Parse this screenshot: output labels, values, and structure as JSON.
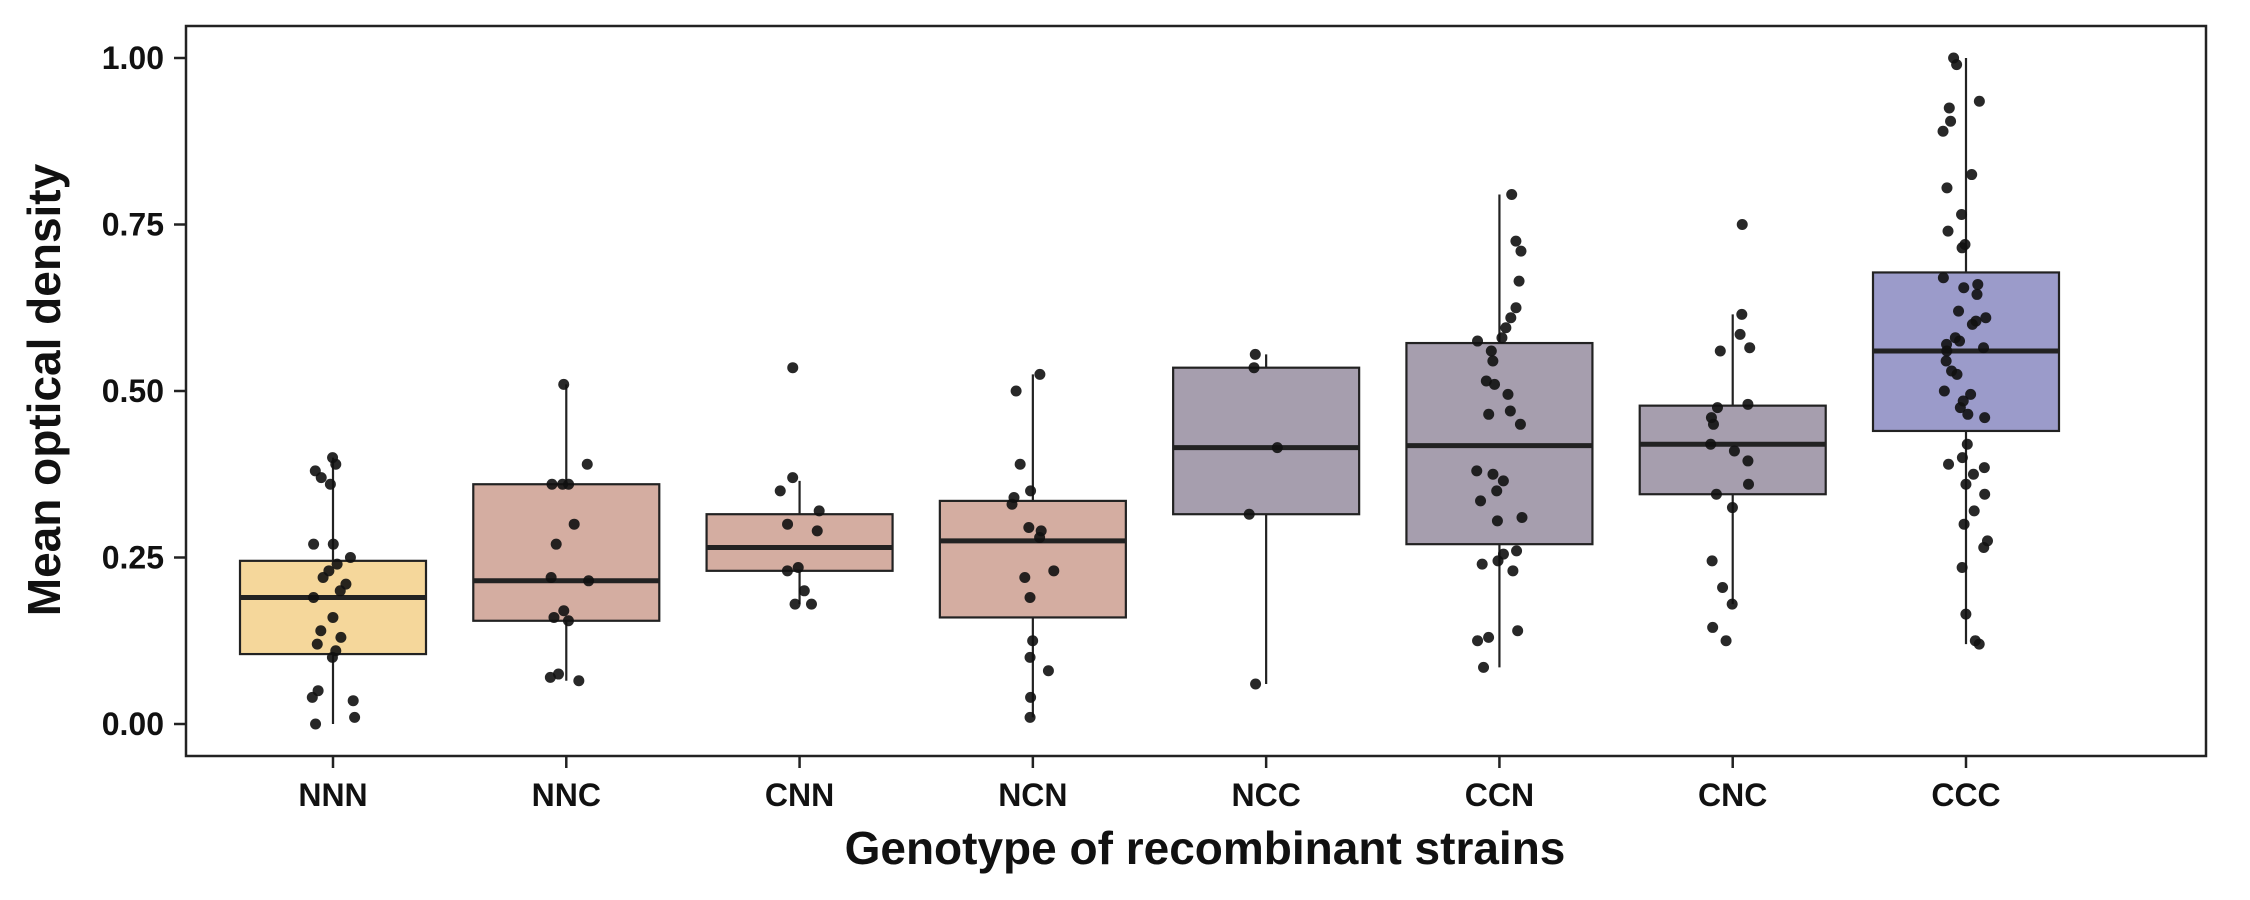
{
  "chart_data": {
    "type": "box",
    "title": "",
    "xlabel": "Genotype of recombinant strains",
    "ylabel": "Mean optical density",
    "ylim": [
      -0.05,
      1.05
    ],
    "yticks": [
      "0.00",
      "0.25",
      "0.50",
      "0.75",
      "1.00"
    ],
    "ytick_values": [
      0,
      0.25,
      0.5,
      0.75,
      1.0
    ],
    "grid": false,
    "legend": "none",
    "categories": [
      "NNN",
      "NNC",
      "CNN",
      "NCN",
      "NCC",
      "CCN",
      "CNC",
      "CCC"
    ],
    "colors": [
      "#f5d79b",
      "#d4ada1",
      "#d4ada1",
      "#d4ada1",
      "#a69eae",
      "#a69eae",
      "#a69eae",
      "#9b9bca"
    ],
    "boxes": [
      {
        "category": "NNN",
        "q1": 0.105,
        "median": 0.19,
        "q3": 0.245,
        "whisker_low": 0.0,
        "whisker_high": 0.4,
        "points": [
          0.4,
          0.39,
          0.38,
          0.37,
          0.36,
          0.27,
          0.27,
          0.25,
          0.24,
          0.23,
          0.22,
          0.21,
          0.2,
          0.19,
          0.16,
          0.14,
          0.13,
          0.12,
          0.11,
          0.1,
          0.05,
          0.04,
          0.035,
          0.01,
          0.0
        ]
      },
      {
        "category": "NNC",
        "q1": 0.155,
        "median": 0.215,
        "q3": 0.36,
        "whisker_low": 0.065,
        "whisker_high": 0.51,
        "points": [
          0.51,
          0.39,
          0.36,
          0.36,
          0.36,
          0.3,
          0.27,
          0.22,
          0.215,
          0.17,
          0.16,
          0.155,
          0.075,
          0.07,
          0.065
        ]
      },
      {
        "category": "CNN",
        "q1": 0.23,
        "median": 0.265,
        "q3": 0.315,
        "whisker_low": 0.18,
        "whisker_high": 0.365,
        "points": [
          0.535,
          0.37,
          0.35,
          0.32,
          0.3,
          0.29,
          0.235,
          0.23,
          0.2,
          0.18,
          0.18
        ]
      },
      {
        "category": "NCN",
        "q1": 0.16,
        "median": 0.275,
        "q3": 0.335,
        "whisker_low": 0.01,
        "whisker_high": 0.525,
        "points": [
          0.525,
          0.5,
          0.39,
          0.35,
          0.34,
          0.33,
          0.295,
          0.29,
          0.28,
          0.23,
          0.22,
          0.19,
          0.125,
          0.1,
          0.08,
          0.04,
          0.01
        ]
      },
      {
        "category": "NCC",
        "q1": 0.315,
        "median": 0.415,
        "q3": 0.535,
        "whisker_low": 0.06,
        "whisker_high": 0.555,
        "points": [
          0.555,
          0.535,
          0.415,
          0.315,
          0.06
        ]
      },
      {
        "category": "CCN",
        "q1": 0.27,
        "median": 0.418,
        "q3": 0.572,
        "whisker_low": 0.085,
        "whisker_high": 0.795,
        "points": [
          0.795,
          0.725,
          0.71,
          0.665,
          0.625,
          0.61,
          0.595,
          0.58,
          0.575,
          0.56,
          0.545,
          0.515,
          0.51,
          0.495,
          0.47,
          0.465,
          0.45,
          0.38,
          0.375,
          0.365,
          0.35,
          0.335,
          0.31,
          0.305,
          0.26,
          0.255,
          0.245,
          0.24,
          0.23,
          0.14,
          0.13,
          0.125,
          0.085
        ]
      },
      {
        "category": "CNC",
        "q1": 0.345,
        "median": 0.42,
        "q3": 0.478,
        "whisker_low": 0.18,
        "whisker_high": 0.615,
        "points": [
          0.75,
          0.615,
          0.585,
          0.565,
          0.56,
          0.48,
          0.475,
          0.46,
          0.45,
          0.42,
          0.41,
          0.395,
          0.36,
          0.345,
          0.325,
          0.245,
          0.205,
          0.18,
          0.145,
          0.125
        ]
      },
      {
        "category": "CCC",
        "q1": 0.44,
        "median": 0.56,
        "q3": 0.678,
        "whisker_low": 0.12,
        "whisker_high": 1.0,
        "points": [
          1.0,
          0.99,
          0.935,
          0.925,
          0.905,
          0.89,
          0.825,
          0.805,
          0.765,
          0.74,
          0.72,
          0.715,
          0.67,
          0.66,
          0.655,
          0.645,
          0.62,
          0.61,
          0.605,
          0.6,
          0.58,
          0.575,
          0.57,
          0.565,
          0.56,
          0.545,
          0.53,
          0.525,
          0.5,
          0.495,
          0.485,
          0.475,
          0.465,
          0.46,
          0.42,
          0.4,
          0.39,
          0.385,
          0.375,
          0.36,
          0.345,
          0.32,
          0.3,
          0.275,
          0.265,
          0.235,
          0.165,
          0.125,
          0.12
        ]
      }
    ]
  }
}
